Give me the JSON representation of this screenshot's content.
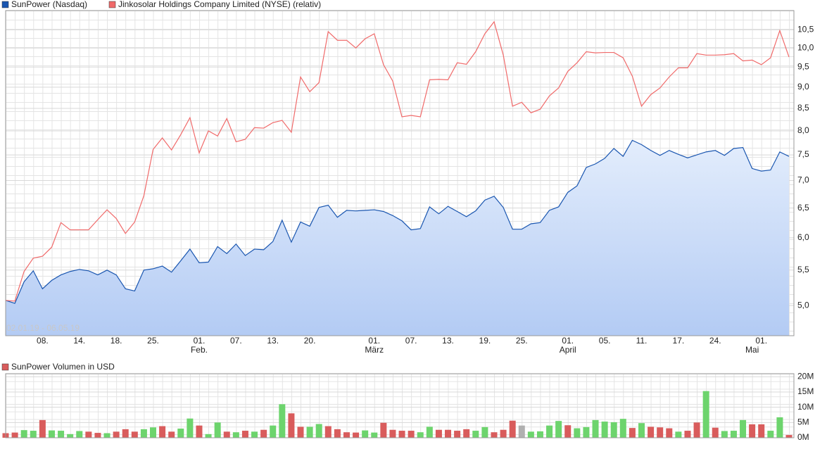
{
  "chart_data": [
    {
      "type": "line",
      "log_scale": true,
      "grid": true,
      "annotation": "02.01.19 - 06.05.19",
      "categories": [
        null,
        null,
        null,
        null,
        "08.",
        null,
        null,
        null,
        "14.",
        null,
        null,
        null,
        "18.",
        null,
        null,
        null,
        "25.",
        null,
        null,
        null,
        null,
        "01.",
        null,
        null,
        null,
        "07.",
        null,
        null,
        null,
        "13.",
        null,
        null,
        null,
        "20.",
        null,
        null,
        null,
        null,
        null,
        null,
        "01.",
        null,
        null,
        null,
        "07.",
        null,
        null,
        null,
        "13.",
        null,
        null,
        null,
        "19.",
        null,
        null,
        null,
        "25.",
        null,
        null,
        null,
        null,
        "01.",
        null,
        null,
        null,
        "05.",
        null,
        null,
        null,
        "11.",
        null,
        null,
        null,
        "17.",
        null,
        null,
        null,
        "24.",
        null,
        null,
        null,
        null,
        "01.",
        null,
        null,
        null
      ],
      "category_groups": [
        null,
        null,
        null,
        null,
        null,
        null,
        null,
        null,
        null,
        null,
        null,
        null,
        null,
        null,
        null,
        null,
        null,
        null,
        null,
        null,
        null,
        "Feb.",
        null,
        null,
        null,
        null,
        null,
        null,
        null,
        null,
        null,
        null,
        null,
        null,
        null,
        null,
        null,
        null,
        null,
        null,
        "März",
        null,
        null,
        null,
        null,
        null,
        null,
        null,
        null,
        null,
        null,
        null,
        null,
        null,
        null,
        null,
        null,
        null,
        null,
        null,
        null,
        "April",
        null,
        null,
        null,
        null,
        null,
        null,
        null,
        null,
        null,
        null,
        null,
        null,
        null,
        null,
        null,
        null,
        null,
        null,
        null,
        "Mai",
        null,
        null,
        null
      ],
      "ylim": [
        4.61,
        11.06
      ],
      "yticks": [
        {
          "value": 5.0,
          "label": "5,0"
        },
        {
          "value": 5.5,
          "label": "5,5"
        },
        {
          "value": 6.0,
          "label": "6,0"
        },
        {
          "value": 6.5,
          "label": "6,5"
        },
        {
          "value": 7.0,
          "label": "7,0"
        },
        {
          "value": 7.5,
          "label": "7,5"
        },
        {
          "value": 8.0,
          "label": "8,0"
        },
        {
          "value": 8.5,
          "label": "8,5"
        },
        {
          "value": 9.0,
          "label": "9,0"
        },
        {
          "value": 9.5,
          "label": "9,5"
        },
        {
          "value": 10.0,
          "label": "10,0"
        },
        {
          "value": 10.5,
          "label": "10,5"
        }
      ],
      "series": [
        {
          "name": "SunPower (Nasdaq)",
          "color": "#1a56b0",
          "area": true,
          "values": [
            5.07,
            5.03,
            5.33,
            5.49,
            5.23,
            5.35,
            5.43,
            5.48,
            5.51,
            5.49,
            5.43,
            5.5,
            5.43,
            5.23,
            5.2,
            5.5,
            5.52,
            5.56,
            5.47,
            5.64,
            5.82,
            5.61,
            5.62,
            5.86,
            5.75,
            5.9,
            5.72,
            5.82,
            5.81,
            5.94,
            6.29,
            5.93,
            6.26,
            6.19,
            6.51,
            6.55,
            6.34,
            6.46,
            6.45,
            6.46,
            6.47,
            6.44,
            6.37,
            6.28,
            6.13,
            6.15,
            6.52,
            6.4,
            6.53,
            6.44,
            6.35,
            6.45,
            6.64,
            6.71,
            6.51,
            6.14,
            6.14,
            6.23,
            6.25,
            6.46,
            6.52,
            6.78,
            6.9,
            7.25,
            7.32,
            7.43,
            7.63,
            7.47,
            7.8,
            7.71,
            7.59,
            7.49,
            7.59,
            7.51,
            7.44,
            7.5,
            7.56,
            7.59,
            7.49,
            7.63,
            7.65,
            7.23,
            7.18,
            7.2,
            7.56,
            7.47
          ]
        },
        {
          "name": "Jinkosolar Holdings Company Limited (NYSE) (relativ)",
          "color": "#f06a6a",
          "area": false,
          "values": [
            5.07,
            5.06,
            5.48,
            5.68,
            5.71,
            5.85,
            6.25,
            6.13,
            6.13,
            6.13,
            6.3,
            6.47,
            6.32,
            6.07,
            6.26,
            6.72,
            7.61,
            7.85,
            7.6,
            7.92,
            8.29,
            7.54,
            8.0,
            7.89,
            8.27,
            7.77,
            7.82,
            8.07,
            8.06,
            8.18,
            8.23,
            7.97,
            9.25,
            8.89,
            9.11,
            10.45,
            10.21,
            10.21,
            10.0,
            10.25,
            10.39,
            9.56,
            9.15,
            8.31,
            8.34,
            8.31,
            9.18,
            9.19,
            9.18,
            9.61,
            9.57,
            9.9,
            10.39,
            10.73,
            9.81,
            8.55,
            8.64,
            8.4,
            8.48,
            8.79,
            8.98,
            9.39,
            9.61,
            9.9,
            9.87,
            9.88,
            9.88,
            9.74,
            9.27,
            8.55,
            8.82,
            8.98,
            9.25,
            9.48,
            9.48,
            9.85,
            9.81,
            9.81,
            9.82,
            9.85,
            9.66,
            9.68,
            9.56,
            9.74,
            10.48,
            9.76
          ]
        }
      ]
    },
    {
      "type": "bar",
      "grid": true,
      "ylim": [
        0,
        21
      ],
      "yticks": [
        {
          "value": 0,
          "label": "0M"
        },
        {
          "value": 5,
          "label": "5M"
        },
        {
          "value": 10,
          "label": "10M"
        },
        {
          "value": 15,
          "label": "15M"
        },
        {
          "value": 20,
          "label": "20M"
        }
      ],
      "series": [
        {
          "name": "SunPower Volumen in USD",
          "color": "#d95c5c",
          "values": [
            1.5,
            1.7,
            2.5,
            2.3,
            5.8,
            2.4,
            2.3,
            1.2,
            2.2,
            2.0,
            1.6,
            1.5,
            2.0,
            2.8,
            2.0,
            2.8,
            3.4,
            3.8,
            2.0,
            3.0,
            6.3,
            4.0,
            1.2,
            5.0,
            2.0,
            1.8,
            2.3,
            2.0,
            2.6,
            4.0,
            11.0,
            8.0,
            3.6,
            3.6,
            4.5,
            3.8,
            2.8,
            1.8,
            1.7,
            2.4,
            1.7,
            4.9,
            2.6,
            2.3,
            2.3,
            1.8,
            3.6,
            2.6,
            2.6,
            2.3,
            2.8,
            2.3,
            3.5,
            1.8,
            2.6,
            5.6,
            4.0,
            2.0,
            2.1,
            4.0,
            5.5,
            4.1,
            3.1,
            3.5,
            5.8,
            5.3,
            5.1,
            6.2,
            3.2,
            4.8,
            3.6,
            3.4,
            3.1,
            2.0,
            2.3,
            5.0,
            15.3,
            3.3,
            2.2,
            2.3,
            5.8,
            4.4,
            4.4,
            2.3,
            6.7,
            0.9
          ],
          "bar_colors": [
            "#d95c5c",
            "#d95c5c",
            "#6dd46d",
            "#6dd46d",
            "#d95c5c",
            "#6dd46d",
            "#6dd46d",
            "#6dd46d",
            "#6dd46d",
            "#d95c5c",
            "#d95c5c",
            "#6dd46d",
            "#d95c5c",
            "#d95c5c",
            "#d95c5c",
            "#6dd46d",
            "#6dd46d",
            "#d95c5c",
            "#d95c5c",
            "#6dd46d",
            "#6dd46d",
            "#d95c5c",
            "#6dd46d",
            "#6dd46d",
            "#d95c5c",
            "#6dd46d",
            "#d95c5c",
            "#6dd46d",
            "#d95c5c",
            "#6dd46d",
            "#6dd46d",
            "#d95c5c",
            "#d95c5c",
            "#6dd46d",
            "#6dd46d",
            "#d95c5c",
            "#d95c5c",
            "#d95c5c",
            "#d95c5c",
            "#6dd46d",
            "#6dd46d",
            "#d95c5c",
            "#d95c5c",
            "#d95c5c",
            "#d95c5c",
            "#6dd46d",
            "#6dd46d",
            "#d95c5c",
            "#d95c5c",
            "#d95c5c",
            "#d95c5c",
            "#6dd46d",
            "#6dd46d",
            "#d95c5c",
            "#d95c5c",
            "#d95c5c",
            "#b0b0b0",
            "#6dd46d",
            "#6dd46d",
            "#6dd46d",
            "#6dd46d",
            "#d95c5c",
            "#6dd46d",
            "#6dd46d",
            "#6dd46d",
            "#6dd46d",
            "#6dd46d",
            "#6dd46d",
            "#d95c5c",
            "#6dd46d",
            "#d95c5c",
            "#d95c5c",
            "#d95c5c",
            "#6dd46d",
            "#d95c5c",
            "#d95c5c",
            "#6dd46d",
            "#d95c5c",
            "#6dd46d",
            "#6dd46d",
            "#6dd46d",
            "#d95c5c",
            "#d95c5c",
            "#6dd46d",
            "#6dd46d",
            "#d95c5c"
          ]
        }
      ]
    }
  ]
}
